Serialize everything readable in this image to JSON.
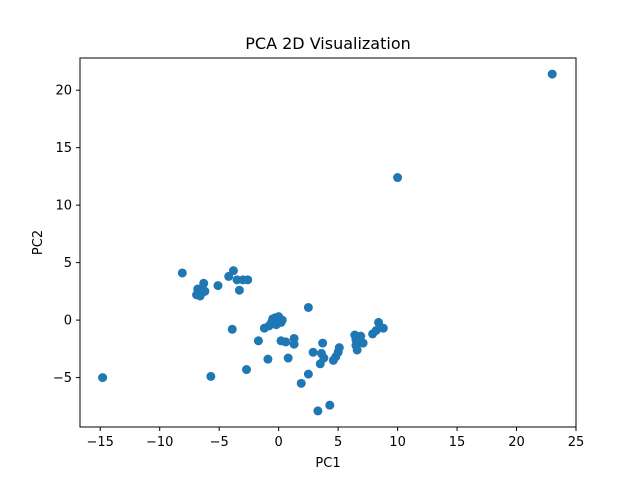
{
  "chart_data": {
    "type": "scatter",
    "title": "PCA 2D Visualization",
    "xlabel": "PC1",
    "ylabel": "PC2",
    "xlim": [
      -16.7,
      25.0
    ],
    "ylim": [
      -9.3,
      22.8
    ],
    "xticks": [
      -15,
      -10,
      -5,
      0,
      5,
      10,
      15,
      20,
      25
    ],
    "xtick_labels": [
      "−15",
      "−10",
      "−5",
      "0",
      "5",
      "10",
      "15",
      "20",
      "25"
    ],
    "yticks": [
      -5,
      0,
      5,
      10,
      15,
      20
    ],
    "ytick_labels": [
      "−5",
      "0",
      "5",
      "10",
      "15",
      "20"
    ],
    "grid": false,
    "color": "#1f77b4",
    "points": [
      {
        "x": 23.0,
        "y": 21.4
      },
      {
        "x": 10.0,
        "y": 12.4
      },
      {
        "x": -14.8,
        "y": -5.0
      },
      {
        "x": -8.1,
        "y": 4.1
      },
      {
        "x": -6.9,
        "y": 2.2
      },
      {
        "x": -6.8,
        "y": 2.7
      },
      {
        "x": -6.7,
        "y": 2.4
      },
      {
        "x": -6.6,
        "y": 2.1
      },
      {
        "x": -6.5,
        "y": 2.6
      },
      {
        "x": -6.4,
        "y": 2.8
      },
      {
        "x": -6.3,
        "y": 3.2
      },
      {
        "x": -6.2,
        "y": 2.5
      },
      {
        "x": -5.1,
        "y": 3.0
      },
      {
        "x": -5.7,
        "y": -4.9
      },
      {
        "x": -4.2,
        "y": 3.8
      },
      {
        "x": -3.8,
        "y": 4.3
      },
      {
        "x": -3.5,
        "y": 3.5
      },
      {
        "x": -3.3,
        "y": 2.6
      },
      {
        "x": -3.0,
        "y": 3.5
      },
      {
        "x": -2.6,
        "y": 3.5
      },
      {
        "x": -2.7,
        "y": -4.3
      },
      {
        "x": -3.9,
        "y": -0.8
      },
      {
        "x": -1.7,
        "y": -1.8
      },
      {
        "x": -1.2,
        "y": -0.7
      },
      {
        "x": -0.9,
        "y": -3.4
      },
      {
        "x": -0.8,
        "y": -0.5
      },
      {
        "x": -0.6,
        "y": -0.2
      },
      {
        "x": -0.5,
        "y": 0.1
      },
      {
        "x": -0.3,
        "y": 0.2
      },
      {
        "x": -0.2,
        "y": -0.4
      },
      {
        "x": 0.0,
        "y": 0.3
      },
      {
        "x": 0.1,
        "y": 0.1
      },
      {
        "x": 0.2,
        "y": -0.2
      },
      {
        "x": 0.3,
        "y": 0.0
      },
      {
        "x": 0.2,
        "y": -1.8
      },
      {
        "x": 0.6,
        "y": -1.9
      },
      {
        "x": 0.8,
        "y": -3.3
      },
      {
        "x": 1.3,
        "y": -1.6
      },
      {
        "x": 1.3,
        "y": -2.1
      },
      {
        "x": 1.9,
        "y": -5.5
      },
      {
        "x": 2.5,
        "y": 1.1
      },
      {
        "x": 2.5,
        "y": -4.7
      },
      {
        "x": 2.9,
        "y": -2.8
      },
      {
        "x": 3.3,
        "y": -7.9
      },
      {
        "x": 3.5,
        "y": -3.8
      },
      {
        "x": 3.7,
        "y": -2.0
      },
      {
        "x": 3.6,
        "y": -2.9
      },
      {
        "x": 3.8,
        "y": -3.3
      },
      {
        "x": 4.3,
        "y": -7.4
      },
      {
        "x": 4.6,
        "y": -3.5
      },
      {
        "x": 4.8,
        "y": -3.2
      },
      {
        "x": 5.0,
        "y": -2.8
      },
      {
        "x": 5.1,
        "y": -2.4
      },
      {
        "x": 6.4,
        "y": -1.3
      },
      {
        "x": 6.5,
        "y": -1.7
      },
      {
        "x": 6.5,
        "y": -2.2
      },
      {
        "x": 6.6,
        "y": -2.6
      },
      {
        "x": 6.9,
        "y": -1.4
      },
      {
        "x": 7.1,
        "y": -2.0
      },
      {
        "x": 7.9,
        "y": -1.2
      },
      {
        "x": 8.2,
        "y": -0.9
      },
      {
        "x": 8.4,
        "y": -0.2
      },
      {
        "x": 8.8,
        "y": -0.7
      }
    ]
  }
}
